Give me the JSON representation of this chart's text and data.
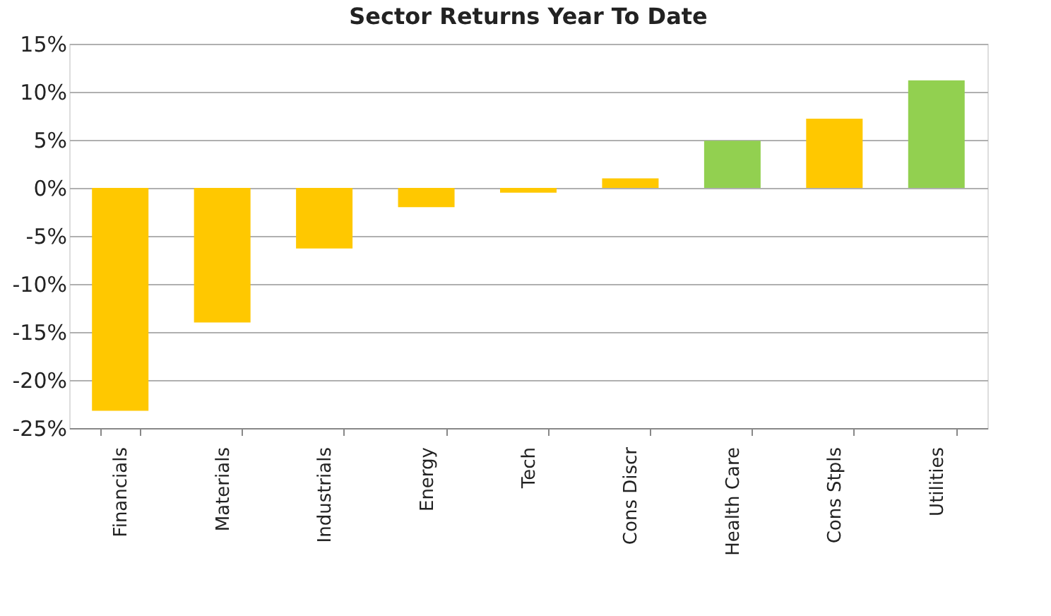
{
  "chart_data": {
    "type": "bar",
    "title": "Sector Returns Year To Date",
    "categories": [
      "Financials",
      "Materials",
      "Industrials",
      "Energy",
      "Tech",
      "Cons Discr",
      "Health Care",
      "Cons Stpls",
      "Utilities"
    ],
    "values": [
      -23.2,
      -14.0,
      -6.3,
      -2.0,
      -0.5,
      1.0,
      4.9,
      7.2,
      11.2
    ],
    "colors": [
      "#ffc800",
      "#ffc800",
      "#ffc800",
      "#ffc800",
      "#ffc800",
      "#ffc800",
      "#92d050",
      "#ffc800",
      "#92d050"
    ],
    "ylim": [
      -25,
      15
    ],
    "yticks": [
      {
        "value": -25,
        "label": "-25%"
      },
      {
        "value": -20,
        "label": "-20%"
      },
      {
        "value": -15,
        "label": "-15%"
      },
      {
        "value": -10,
        "label": "-10%"
      },
      {
        "value": -5,
        "label": "-5%"
      },
      {
        "value": 0,
        "label": "0%"
      },
      {
        "value": 5,
        "label": "5%"
      },
      {
        "value": 10,
        "label": "10%"
      },
      {
        "value": 15,
        "label": "15%"
      }
    ],
    "grid": "y"
  }
}
